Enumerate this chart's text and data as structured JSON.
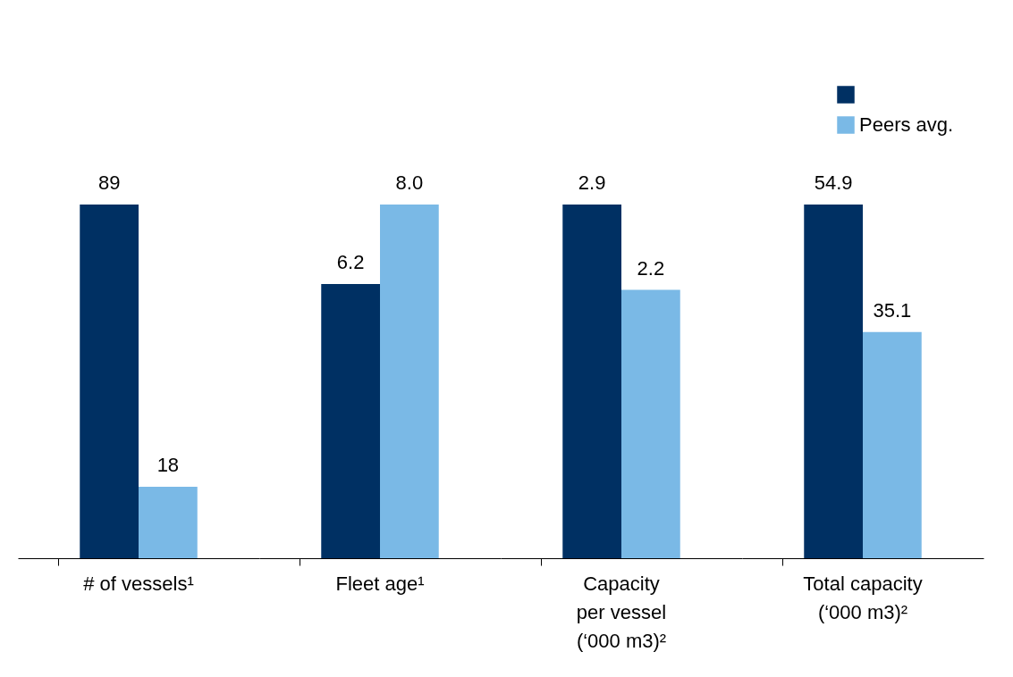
{
  "chart_data": [
    {
      "type": "bar",
      "categories": [
        "# of vessels¹"
      ],
      "series": [
        {
          "color": "#003063",
          "values": [
            89
          ],
          "value_labels": [
            "89"
          ]
        },
        {
          "color": "#7ab9e6",
          "values": [
            18
          ],
          "value_labels": [
            "18"
          ]
        }
      ]
    },
    {
      "type": "bar",
      "categories": [
        "Fleet age¹"
      ],
      "series": [
        {
          "color": "#003063",
          "values": [
            6.2
          ],
          "value_labels": [
            "6.2"
          ]
        },
        {
          "color": "#7ab9e6",
          "values": [
            8.0
          ],
          "value_labels": [
            "8.0"
          ]
        }
      ]
    },
    {
      "type": "bar",
      "categories": [
        "Capacity per vessel (‘000 m3)²"
      ],
      "series": [
        {
          "color": "#003063",
          "values": [
            2.9
          ],
          "value_labels": [
            "2.9"
          ]
        },
        {
          "color": "#7ab9e6",
          "values": [
            2.2
          ],
          "value_labels": [
            "2.2"
          ]
        }
      ]
    },
    {
      "type": "bar",
      "categories": [
        "Total capacity (‘000 m3)²"
      ],
      "legend": "top right",
      "series": [
        {
          "color": "#003063",
          "values": [
            54.9
          ],
          "value_labels": [
            "54.9"
          ]
        },
        {
          "name": "Peers avg.",
          "color": "#7ab9e6",
          "values": [
            35.1
          ],
          "value_labels": [
            "35.1"
          ]
        }
      ]
    }
  ]
}
